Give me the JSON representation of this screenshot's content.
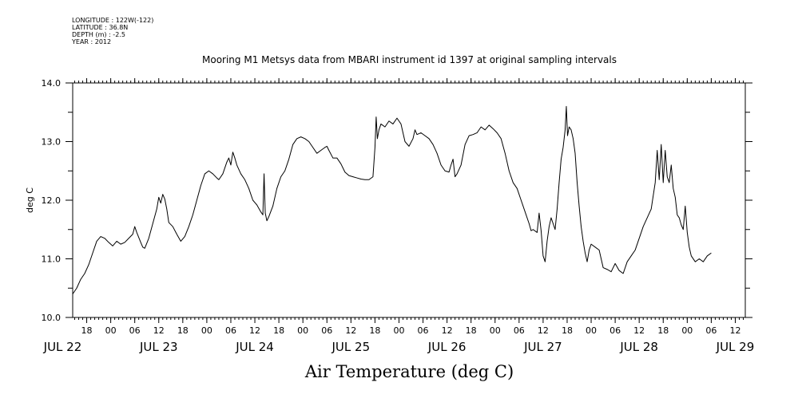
{
  "metadata": {
    "lines": [
      "LONGITUDE : 122W(-122)",
      "LATITUDE : 36.8N",
      "DEPTH (m) : -2.5",
      "YEAR : 2012"
    ]
  },
  "chart_data": {
    "type": "line",
    "title": "Mooring M1 Metsys data from MBARI instrument id 1397 at original sampling intervals",
    "xlabel": "Air Temperature (deg C)",
    "ylabel": "deg C",
    "ylim": [
      10.0,
      14.0
    ],
    "y_ticks": [
      "10.0",
      "11.0",
      "12.0",
      "13.0",
      "14.0"
    ],
    "x_unit": "hours since JUL 22 00:00, 2012",
    "xlim": [
      14.5,
      182.5
    ],
    "hour_ticks": [
      {
        "x": 18,
        "label": "18"
      },
      {
        "x": 24,
        "label": "00"
      },
      {
        "x": 30,
        "label": "06"
      },
      {
        "x": 36,
        "label": "12"
      },
      {
        "x": 42,
        "label": "18"
      },
      {
        "x": 48,
        "label": "00"
      },
      {
        "x": 54,
        "label": "06"
      },
      {
        "x": 60,
        "label": "12"
      },
      {
        "x": 66,
        "label": "18"
      },
      {
        "x": 72,
        "label": "00"
      },
      {
        "x": 78,
        "label": "06"
      },
      {
        "x": 84,
        "label": "12"
      },
      {
        "x": 90,
        "label": "18"
      },
      {
        "x": 96,
        "label": "00"
      },
      {
        "x": 102,
        "label": "06"
      },
      {
        "x": 108,
        "label": "12"
      },
      {
        "x": 114,
        "label": "18"
      },
      {
        "x": 120,
        "label": "00"
      },
      {
        "x": 126,
        "label": "06"
      },
      {
        "x": 132,
        "label": "12"
      },
      {
        "x": 138,
        "label": "18"
      },
      {
        "x": 144,
        "label": "00"
      },
      {
        "x": 150,
        "label": "06"
      },
      {
        "x": 156,
        "label": "12"
      },
      {
        "x": 162,
        "label": "18"
      },
      {
        "x": 168,
        "label": "00"
      },
      {
        "x": 174,
        "label": "06"
      },
      {
        "x": 180,
        "label": "12"
      }
    ],
    "day_labels": [
      {
        "x": 12,
        "label": "JUL 22"
      },
      {
        "x": 36,
        "label": "JUL 23"
      },
      {
        "x": 60,
        "label": "JUL 24"
      },
      {
        "x": 84,
        "label": "JUL 25"
      },
      {
        "x": 108,
        "label": "JUL 26"
      },
      {
        "x": 132,
        "label": "JUL 27"
      },
      {
        "x": 156,
        "label": "JUL 28"
      },
      {
        "x": 180,
        "label": "JUL 29"
      }
    ],
    "series": [
      {
        "color": "#000000",
        "points": [
          [
            14.5,
            10.4
          ],
          [
            15.5,
            10.5
          ],
          [
            16.5,
            10.65
          ],
          [
            17.5,
            10.75
          ],
          [
            18.5,
            10.9
          ],
          [
            19.5,
            11.1
          ],
          [
            20.5,
            11.3
          ],
          [
            21.5,
            11.38
          ],
          [
            22.5,
            11.35
          ],
          [
            23.5,
            11.28
          ],
          [
            24.5,
            11.22
          ],
          [
            25.5,
            11.3
          ],
          [
            26.5,
            11.25
          ],
          [
            27.5,
            11.28
          ],
          [
            28.5,
            11.35
          ],
          [
            29.5,
            11.42
          ],
          [
            30.0,
            11.55
          ],
          [
            30.5,
            11.45
          ],
          [
            31.5,
            11.28
          ],
          [
            32.0,
            11.2
          ],
          [
            32.5,
            11.18
          ],
          [
            33.5,
            11.35
          ],
          [
            34.5,
            11.6
          ],
          [
            35.5,
            11.85
          ],
          [
            36.0,
            12.05
          ],
          [
            36.5,
            11.95
          ],
          [
            37.0,
            12.1
          ],
          [
            37.5,
            12.02
          ],
          [
            38.0,
            11.85
          ],
          [
            38.5,
            11.62
          ],
          [
            39.5,
            11.55
          ],
          [
            40.5,
            11.42
          ],
          [
            41.5,
            11.3
          ],
          [
            42.5,
            11.38
          ],
          [
            43.5,
            11.55
          ],
          [
            44.5,
            11.75
          ],
          [
            45.5,
            12.0
          ],
          [
            46.5,
            12.25
          ],
          [
            47.5,
            12.45
          ],
          [
            48.5,
            12.5
          ],
          [
            49.5,
            12.45
          ],
          [
            50.5,
            12.38
          ],
          [
            51.0,
            12.35
          ],
          [
            52.0,
            12.45
          ],
          [
            53.0,
            12.65
          ],
          [
            53.5,
            12.72
          ],
          [
            54.0,
            12.6
          ],
          [
            54.5,
            12.82
          ],
          [
            55.0,
            12.72
          ],
          [
            55.5,
            12.6
          ],
          [
            56.5,
            12.45
          ],
          [
            57.5,
            12.35
          ],
          [
            58.5,
            12.2
          ],
          [
            59.5,
            12.0
          ],
          [
            60.5,
            11.92
          ],
          [
            61.5,
            11.8
          ],
          [
            62.0,
            11.75
          ],
          [
            62.3,
            12.45
          ],
          [
            62.6,
            11.78
          ],
          [
            63.0,
            11.65
          ],
          [
            63.5,
            11.72
          ],
          [
            64.5,
            11.9
          ],
          [
            65.5,
            12.2
          ],
          [
            66.5,
            12.4
          ],
          [
            67.5,
            12.5
          ],
          [
            68.5,
            12.7
          ],
          [
            69.5,
            12.95
          ],
          [
            70.5,
            13.05
          ],
          [
            71.5,
            13.08
          ],
          [
            72.5,
            13.05
          ],
          [
            73.5,
            13.0
          ],
          [
            74.5,
            12.9
          ],
          [
            75.5,
            12.8
          ],
          [
            76.5,
            12.85
          ],
          [
            77.5,
            12.9
          ],
          [
            78.0,
            12.92
          ],
          [
            78.5,
            12.85
          ],
          [
            79.5,
            12.72
          ],
          [
            80.5,
            12.72
          ],
          [
            81.5,
            12.62
          ],
          [
            82.5,
            12.48
          ],
          [
            83.5,
            12.42
          ],
          [
            84.5,
            12.4
          ],
          [
            85.5,
            12.38
          ],
          [
            86.5,
            12.36
          ],
          [
            87.5,
            12.35
          ],
          [
            88.5,
            12.35
          ],
          [
            89.5,
            12.4
          ],
          [
            90.0,
            12.9
          ],
          [
            90.3,
            13.42
          ],
          [
            90.6,
            13.05
          ],
          [
            91.0,
            13.2
          ],
          [
            91.5,
            13.3
          ],
          [
            92.5,
            13.25
          ],
          [
            93.5,
            13.35
          ],
          [
            94.5,
            13.3
          ],
          [
            95.5,
            13.4
          ],
          [
            96.0,
            13.35
          ],
          [
            96.5,
            13.3
          ],
          [
            97.0,
            13.15
          ],
          [
            97.5,
            13.0
          ],
          [
            98.5,
            12.92
          ],
          [
            99.5,
            13.05
          ],
          [
            100.0,
            13.2
          ],
          [
            100.5,
            13.12
          ],
          [
            101.5,
            13.15
          ],
          [
            102.5,
            13.1
          ],
          [
            103.5,
            13.05
          ],
          [
            104.5,
            12.95
          ],
          [
            105.5,
            12.8
          ],
          [
            106.5,
            12.6
          ],
          [
            107.5,
            12.5
          ],
          [
            108.5,
            12.48
          ],
          [
            109.0,
            12.6
          ],
          [
            109.5,
            12.7
          ],
          [
            110.0,
            12.4
          ],
          [
            110.5,
            12.45
          ],
          [
            111.5,
            12.6
          ],
          [
            112.5,
            12.95
          ],
          [
            113.5,
            13.1
          ],
          [
            114.5,
            13.12
          ],
          [
            115.5,
            13.15
          ],
          [
            116.5,
            13.25
          ],
          [
            117.5,
            13.2
          ],
          [
            118.5,
            13.28
          ],
          [
            119.5,
            13.22
          ],
          [
            120.5,
            13.15
          ],
          [
            121.5,
            13.05
          ],
          [
            122.5,
            12.8
          ],
          [
            123.5,
            12.5
          ],
          [
            124.5,
            12.3
          ],
          [
            125.5,
            12.2
          ],
          [
            126.5,
            12.0
          ],
          [
            127.5,
            11.8
          ],
          [
            128.5,
            11.6
          ],
          [
            129.0,
            11.48
          ],
          [
            129.5,
            11.5
          ],
          [
            130.5,
            11.45
          ],
          [
            131.0,
            11.78
          ],
          [
            131.5,
            11.48
          ],
          [
            132.0,
            11.05
          ],
          [
            132.5,
            10.95
          ],
          [
            133.0,
            11.3
          ],
          [
            133.5,
            11.55
          ],
          [
            134.0,
            11.7
          ],
          [
            134.5,
            11.6
          ],
          [
            135.0,
            11.5
          ],
          [
            135.5,
            11.85
          ],
          [
            136.0,
            12.3
          ],
          [
            136.5,
            12.7
          ],
          [
            137.0,
            12.9
          ],
          [
            137.5,
            13.2
          ],
          [
            137.8,
            13.6
          ],
          [
            138.1,
            13.1
          ],
          [
            138.5,
            13.25
          ],
          [
            139.0,
            13.2
          ],
          [
            139.5,
            13.05
          ],
          [
            140.0,
            12.8
          ],
          [
            140.5,
            12.3
          ],
          [
            141.0,
            11.9
          ],
          [
            141.5,
            11.55
          ],
          [
            142.0,
            11.3
          ],
          [
            142.5,
            11.1
          ],
          [
            143.0,
            10.95
          ],
          [
            143.5,
            11.15
          ],
          [
            144.0,
            11.25
          ],
          [
            145.0,
            11.2
          ],
          [
            146.0,
            11.15
          ],
          [
            146.5,
            11.0
          ],
          [
            147.0,
            10.85
          ],
          [
            148.0,
            10.82
          ],
          [
            149.0,
            10.78
          ],
          [
            150.0,
            10.92
          ],
          [
            151.0,
            10.8
          ],
          [
            152.0,
            10.75
          ],
          [
            153.0,
            10.95
          ],
          [
            154.0,
            11.05
          ],
          [
            155.0,
            11.15
          ],
          [
            156.0,
            11.35
          ],
          [
            157.0,
            11.55
          ],
          [
            158.0,
            11.7
          ],
          [
            159.0,
            11.85
          ],
          [
            160.0,
            12.3
          ],
          [
            160.5,
            12.85
          ],
          [
            161.0,
            12.35
          ],
          [
            161.5,
            12.95
          ],
          [
            162.0,
            12.3
          ],
          [
            162.5,
            12.85
          ],
          [
            163.0,
            12.4
          ],
          [
            163.5,
            12.3
          ],
          [
            164.0,
            12.6
          ],
          [
            164.5,
            12.2
          ],
          [
            165.0,
            12.05
          ],
          [
            165.5,
            11.75
          ],
          [
            166.0,
            11.7
          ],
          [
            166.5,
            11.58
          ],
          [
            167.0,
            11.5
          ],
          [
            167.5,
            11.9
          ],
          [
            168.0,
            11.45
          ],
          [
            168.5,
            11.2
          ],
          [
            169.0,
            11.05
          ],
          [
            170.0,
            10.95
          ],
          [
            171.0,
            11.0
          ],
          [
            172.0,
            10.95
          ],
          [
            173.0,
            11.05
          ],
          [
            174.0,
            11.1
          ]
        ]
      }
    ]
  }
}
